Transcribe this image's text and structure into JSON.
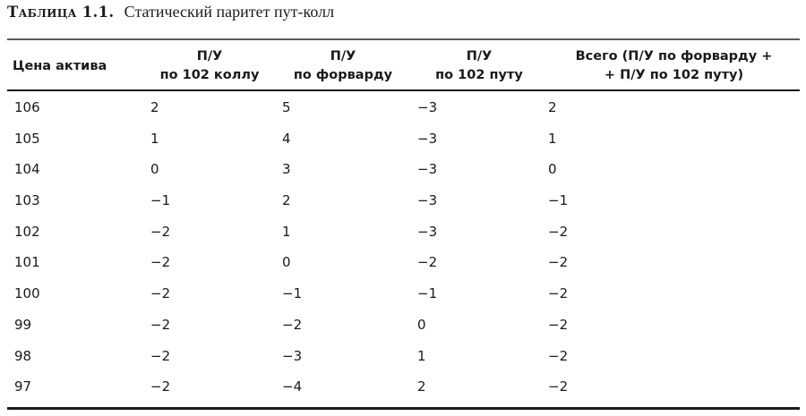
{
  "caption": {
    "label": "Таблица 1.1.",
    "title": "Статический паритет пут-колл"
  },
  "table": {
    "columns": [
      {
        "line1": "Цена актива",
        "line2": ""
      },
      {
        "line1": "П/У",
        "line2": "по 102 коллу"
      },
      {
        "line1": "П/У",
        "line2": "по форварду"
      },
      {
        "line1": "П/У",
        "line2": "по 102 путу"
      },
      {
        "line1": "Всего (П/У по форварду +",
        "line2": "+ П/У по 102 путу)"
      }
    ],
    "rows": [
      [
        "106",
        "2",
        "5",
        "−3",
        "2"
      ],
      [
        "105",
        "1",
        "4",
        "−3",
        "1"
      ],
      [
        "104",
        "0",
        "3",
        "−3",
        "0"
      ],
      [
        "103",
        "−1",
        "2",
        "−3",
        "−1"
      ],
      [
        "102",
        "−2",
        "1",
        "−3",
        "−2"
      ],
      [
        "101",
        "−2",
        "0",
        "−2",
        "−2"
      ],
      [
        "100",
        "−2",
        "−1",
        "−1",
        "−2"
      ],
      [
        "99",
        "−2",
        "−2",
        "0",
        "−2"
      ],
      [
        "98",
        "−2",
        "−3",
        "1",
        "−2"
      ],
      [
        "97",
        "−2",
        "−4",
        "2",
        "−2"
      ]
    ]
  },
  "colors": {
    "text": "#1a1a1a",
    "rule_top": "#5a5a5a",
    "rule_dark": "#1a1a1a",
    "background": "#ffffff"
  }
}
